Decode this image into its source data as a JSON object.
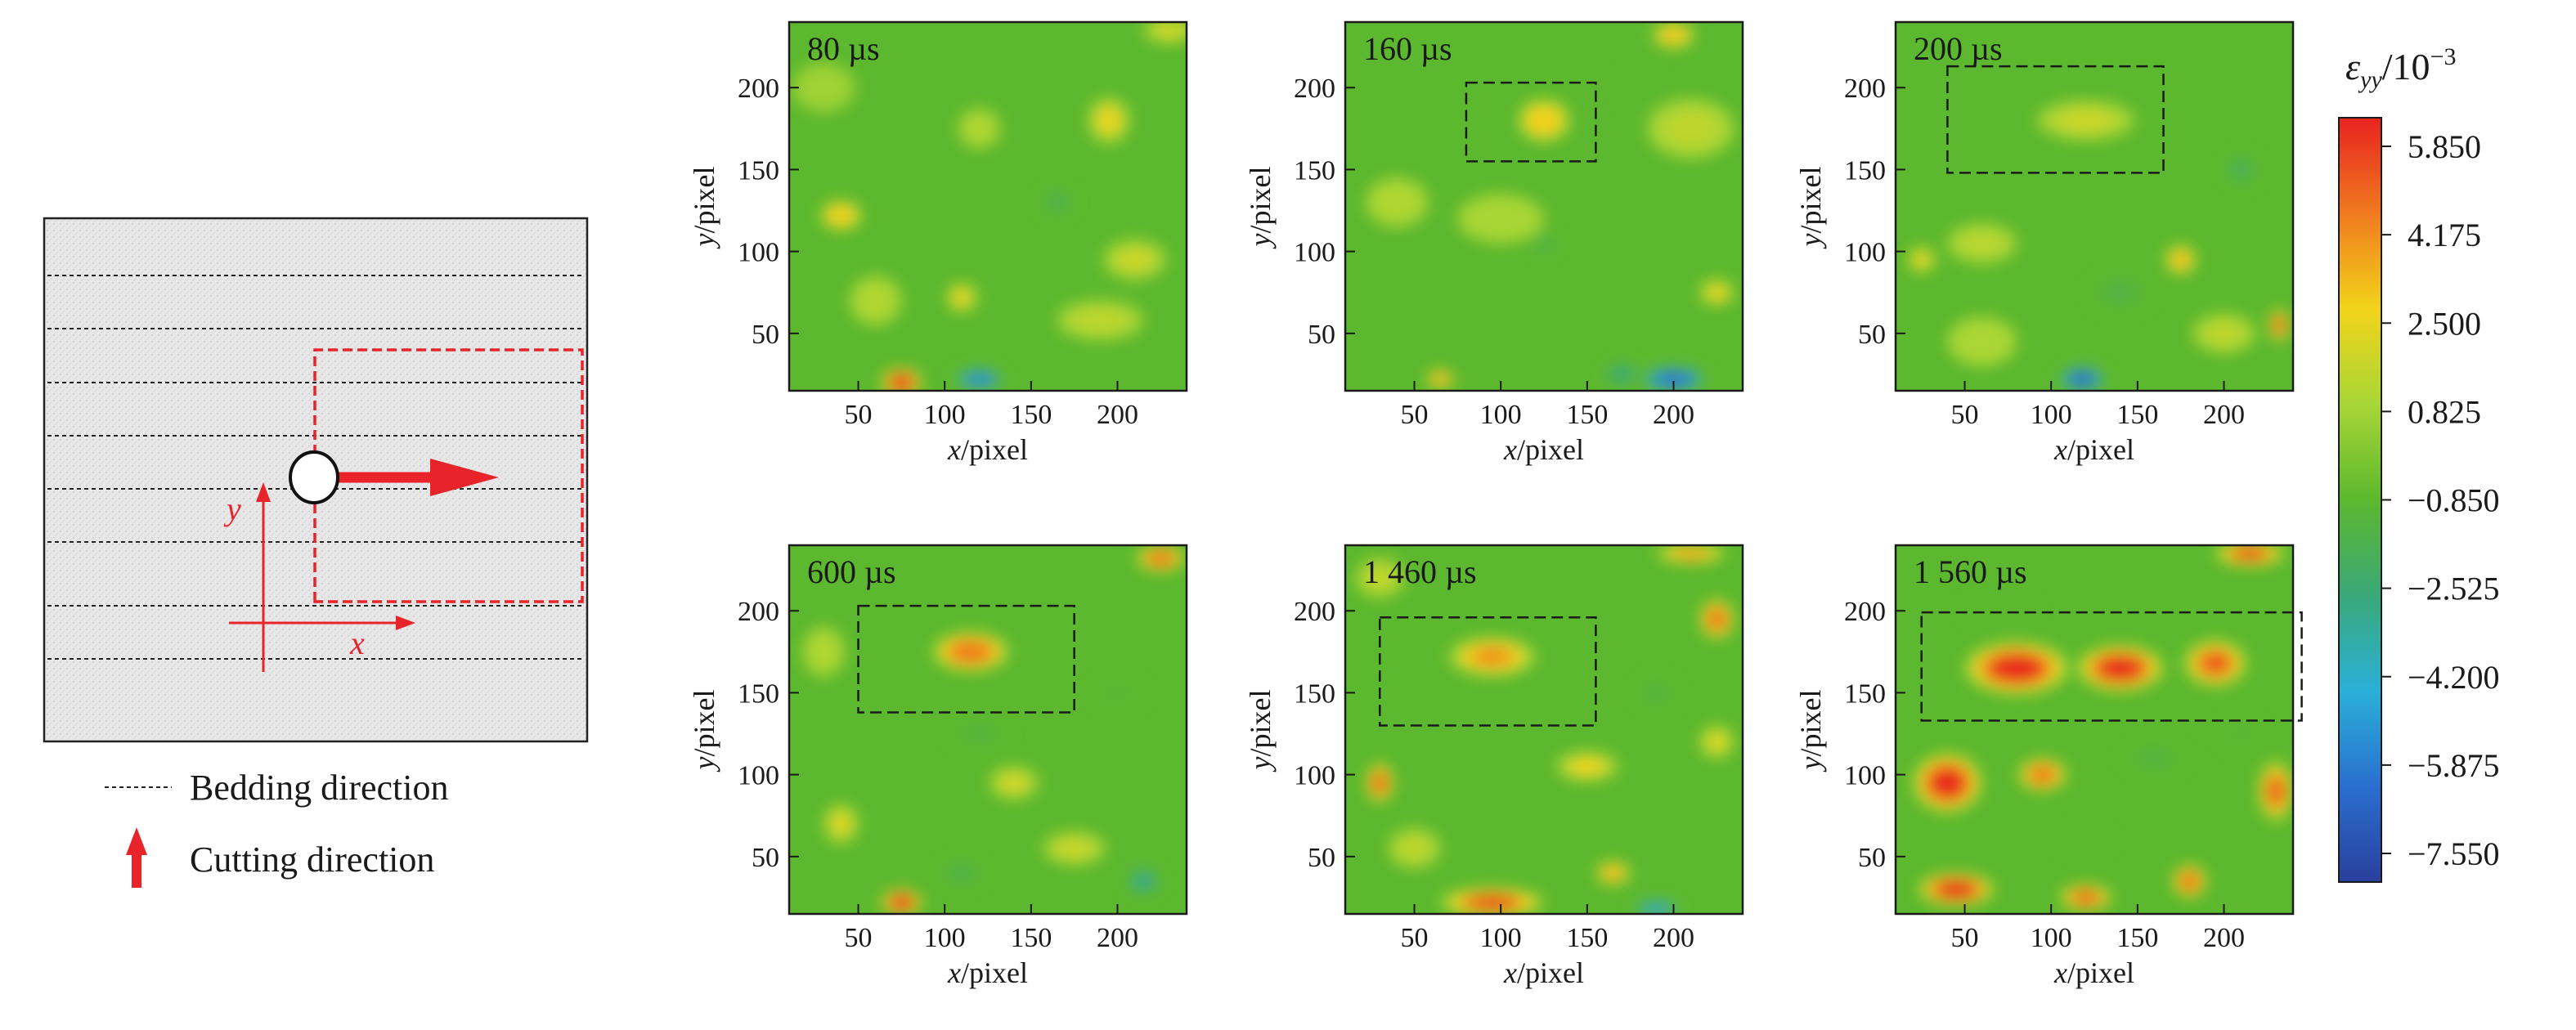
{
  "schematic": {
    "axis_x_label": "x",
    "axis_y_label": "y",
    "legend": [
      {
        "label": "Bedding direction",
        "symbol": "dotted-line"
      },
      {
        "label": "Cutting direction",
        "symbol": "red-arrow-up"
      }
    ],
    "colors": {
      "cut_path": "#e8232a",
      "bedding": "#222222",
      "specimen": "#e6e6e6"
    }
  },
  "chart_data": {
    "type": "heatmap",
    "quantity_label": "ε",
    "quantity_subscript": "yy",
    "quantity_unit": "/10",
    "quantity_unit_exponent": "−3",
    "colorbar": {
      "ticks": [
        "5.850",
        "4.175",
        "2.500",
        "0.825",
        "−0.850",
        "−2.525",
        "−4.200",
        "−5.875",
        "−7.550"
      ],
      "min": -7.55,
      "max": 5.85,
      "colors": [
        "#e8231f",
        "#f07a1f",
        "#f2d41a",
        "#a8d636",
        "#5cb82e",
        "#3aa878",
        "#2ab0d8",
        "#2a6fcf",
        "#2a3f9c"
      ]
    },
    "xlabel_var": "x",
    "xlabel_unit": "/pixel",
    "ylabel_var": "y",
    "ylabel_unit": "/pixel",
    "x_ticks": [
      "50",
      "100",
      "150",
      "200"
    ],
    "y_ticks": [
      "50",
      "100",
      "150",
      "200"
    ],
    "xlim": [
      10,
      240
    ],
    "ylim": [
      15,
      240
    ],
    "panels": [
      {
        "time": "80 µs",
        "box": null,
        "hotspots": [
          {
            "x": 75,
            "y": 20,
            "v": 5.8,
            "sx": 12,
            "sy": 9
          },
          {
            "x": 120,
            "y": 22,
            "v": -5.5,
            "sx": 15,
            "sy": 7
          },
          {
            "x": 110,
            "y": 72,
            "v": 2.2,
            "sx": 9,
            "sy": 9
          },
          {
            "x": 40,
            "y": 122,
            "v": 2.6,
            "sx": 12,
            "sy": 9
          },
          {
            "x": 195,
            "y": 180,
            "v": 2.3,
            "sx": 12,
            "sy": 14
          },
          {
            "x": 210,
            "y": 95,
            "v": 1.6,
            "sx": 18,
            "sy": 12
          },
          {
            "x": 190,
            "y": 58,
            "v": 1.3,
            "sx": 25,
            "sy": 12
          },
          {
            "x": 120,
            "y": 175,
            "v": 1.0,
            "sx": 12,
            "sy": 12
          },
          {
            "x": 60,
            "y": 70,
            "v": 1.0,
            "sx": 15,
            "sy": 15
          },
          {
            "x": 165,
            "y": 130,
            "v": -1.6,
            "sx": 10,
            "sy": 9
          },
          {
            "x": 230,
            "y": 235,
            "v": 1.8,
            "sx": 15,
            "sy": 8
          },
          {
            "x": 30,
            "y": 200,
            "v": 0.6,
            "sx": 18,
            "sy": 15
          }
        ]
      },
      {
        "time": "160 µs",
        "box": [
          80,
          155,
          155,
          203
        ],
        "hotspots": [
          {
            "x": 125,
            "y": 180,
            "v": 2.6,
            "sx": 15,
            "sy": 13
          },
          {
            "x": 200,
            "y": 22,
            "v": -6.0,
            "sx": 20,
            "sy": 8
          },
          {
            "x": 170,
            "y": 25,
            "v": -2.6,
            "sx": 10,
            "sy": 7
          },
          {
            "x": 65,
            "y": 22,
            "v": 3.5,
            "sx": 8,
            "sy": 6
          },
          {
            "x": 125,
            "y": 105,
            "v": -1.5,
            "sx": 8,
            "sy": 7
          },
          {
            "x": 225,
            "y": 75,
            "v": 2.3,
            "sx": 10,
            "sy": 8
          },
          {
            "x": 210,
            "y": 175,
            "v": 1.3,
            "sx": 25,
            "sy": 18
          },
          {
            "x": 40,
            "y": 130,
            "v": 1.0,
            "sx": 18,
            "sy": 15
          },
          {
            "x": 100,
            "y": 120,
            "v": 0.8,
            "sx": 25,
            "sy": 15
          },
          {
            "x": 200,
            "y": 232,
            "v": 2.8,
            "sx": 12,
            "sy": 8
          },
          {
            "x": 180,
            "y": 200,
            "v": -0.8,
            "sx": 12,
            "sy": 12
          }
        ]
      },
      {
        "time": "200 µs",
        "box": [
          40,
          148,
          165,
          213
        ],
        "hotspots": [
          {
            "x": 120,
            "y": 180,
            "v": 1.6,
            "sx": 28,
            "sy": 12
          },
          {
            "x": 118,
            "y": 22,
            "v": -6.5,
            "sx": 14,
            "sy": 8
          },
          {
            "x": 175,
            "y": 95,
            "v": 3.0,
            "sx": 9,
            "sy": 9
          },
          {
            "x": 232,
            "y": 55,
            "v": 5.2,
            "sx": 6,
            "sy": 10
          },
          {
            "x": 200,
            "y": 50,
            "v": 1.3,
            "sx": 18,
            "sy": 12
          },
          {
            "x": 60,
            "y": 105,
            "v": 1.2,
            "sx": 20,
            "sy": 12
          },
          {
            "x": 25,
            "y": 95,
            "v": 2.3,
            "sx": 8,
            "sy": 8
          },
          {
            "x": 210,
            "y": 150,
            "v": -1.8,
            "sx": 10,
            "sy": 10
          },
          {
            "x": 140,
            "y": 75,
            "v": -1.3,
            "sx": 18,
            "sy": 12
          },
          {
            "x": 60,
            "y": 45,
            "v": 0.9,
            "sx": 20,
            "sy": 15
          }
        ]
      },
      {
        "time": "600 µs",
        "box": [
          50,
          138,
          175,
          203
        ],
        "hotspots": [
          {
            "x": 115,
            "y": 175,
            "v": 4.2,
            "sx": 22,
            "sy": 12
          },
          {
            "x": 75,
            "y": 22,
            "v": 5.8,
            "sx": 12,
            "sy": 8
          },
          {
            "x": 225,
            "y": 232,
            "v": 4.5,
            "sx": 14,
            "sy": 8
          },
          {
            "x": 140,
            "y": 95,
            "v": 1.8,
            "sx": 14,
            "sy": 10
          },
          {
            "x": 40,
            "y": 70,
            "v": 2.0,
            "sx": 10,
            "sy": 12
          },
          {
            "x": 175,
            "y": 55,
            "v": 1.6,
            "sx": 18,
            "sy": 10
          },
          {
            "x": 215,
            "y": 35,
            "v": -3.0,
            "sx": 10,
            "sy": 8
          },
          {
            "x": 110,
            "y": 40,
            "v": -1.6,
            "sx": 12,
            "sy": 8
          },
          {
            "x": 120,
            "y": 125,
            "v": -1.2,
            "sx": 18,
            "sy": 8
          },
          {
            "x": 30,
            "y": 175,
            "v": 1.0,
            "sx": 12,
            "sy": 15
          },
          {
            "x": 200,
            "y": 150,
            "v": -1.0,
            "sx": 15,
            "sy": 10
          }
        ]
      },
      {
        "time": "1 460 µs",
        "box": [
          30,
          130,
          155,
          196
        ],
        "hotspots": [
          {
            "x": 95,
            "y": 172,
            "v": 3.8,
            "sx": 25,
            "sy": 12
          },
          {
            "x": 95,
            "y": 22,
            "v": 5.5,
            "sx": 30,
            "sy": 9
          },
          {
            "x": 30,
            "y": 95,
            "v": 5.0,
            "sx": 8,
            "sy": 12
          },
          {
            "x": 225,
            "y": 195,
            "v": 4.4,
            "sx": 10,
            "sy": 12
          },
          {
            "x": 210,
            "y": 235,
            "v": 3.5,
            "sx": 20,
            "sy": 6
          },
          {
            "x": 165,
            "y": 40,
            "v": 3.2,
            "sx": 10,
            "sy": 7
          },
          {
            "x": 150,
            "y": 105,
            "v": 2.4,
            "sx": 18,
            "sy": 9
          },
          {
            "x": 225,
            "y": 120,
            "v": 2.0,
            "sx": 10,
            "sy": 10
          },
          {
            "x": 190,
            "y": 18,
            "v": -4.5,
            "sx": 14,
            "sy": 5
          },
          {
            "x": 50,
            "y": 55,
            "v": 1.3,
            "sx": 15,
            "sy": 12
          },
          {
            "x": 190,
            "y": 150,
            "v": -1.2,
            "sx": 12,
            "sy": 10
          },
          {
            "x": 30,
            "y": 220,
            "v": 1.4,
            "sx": 14,
            "sy": 12
          }
        ]
      },
      {
        "time": "1 560  µs",
        "box": [
          25,
          133,
          245,
          199
        ],
        "hotspots": [
          {
            "x": 80,
            "y": 165,
            "v": 5.8,
            "sx": 30,
            "sy": 16
          },
          {
            "x": 140,
            "y": 165,
            "v": 5.8,
            "sx": 25,
            "sy": 14
          },
          {
            "x": 195,
            "y": 168,
            "v": 5.0,
            "sx": 18,
            "sy": 14
          },
          {
            "x": 40,
            "y": 95,
            "v": 5.8,
            "sx": 20,
            "sy": 18
          },
          {
            "x": 95,
            "y": 100,
            "v": 4.2,
            "sx": 14,
            "sy": 10
          },
          {
            "x": 45,
            "y": 30,
            "v": 5.8,
            "sx": 22,
            "sy": 10
          },
          {
            "x": 120,
            "y": 25,
            "v": 4.8,
            "sx": 15,
            "sy": 8
          },
          {
            "x": 180,
            "y": 35,
            "v": 4.6,
            "sx": 10,
            "sy": 10
          },
          {
            "x": 230,
            "y": 90,
            "v": 4.8,
            "sx": 10,
            "sy": 18
          },
          {
            "x": 215,
            "y": 235,
            "v": 5.2,
            "sx": 20,
            "sy": 8
          },
          {
            "x": 160,
            "y": 110,
            "v": -1.2,
            "sx": 18,
            "sy": 10
          },
          {
            "x": 70,
            "y": 200,
            "v": -0.8,
            "sx": 22,
            "sy": 8
          },
          {
            "x": 120,
            "y": 60,
            "v": -0.8,
            "sx": 15,
            "sy": 8
          },
          {
            "x": 210,
            "y": 125,
            "v": -1.0,
            "sx": 12,
            "sy": 10
          }
        ]
      }
    ]
  }
}
